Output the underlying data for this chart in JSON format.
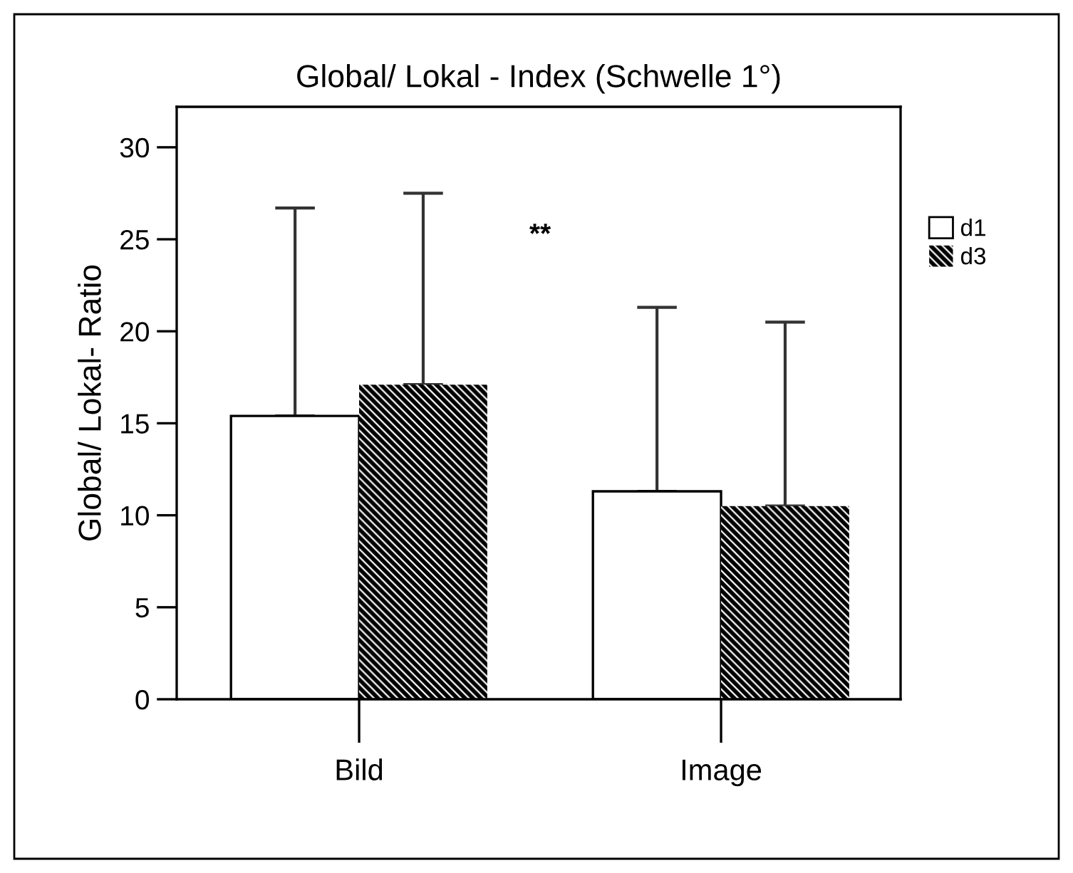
{
  "chart_data": {
    "type": "bar",
    "title": "Global/ Lokal - Index (Schwelle 1°)",
    "ylabel": "Global/ Lokal- Ratio",
    "categories": [
      "Bild",
      "Image"
    ],
    "series": [
      {
        "name": "d1",
        "color": "#ffffff",
        "values": [
          15.4,
          11.3
        ],
        "errors": [
          [
            15.4,
            26.7
          ],
          [
            11.3,
            21.3
          ]
        ]
      },
      {
        "name": "d3",
        "color": "#000000",
        "values": [
          17.1,
          10.5
        ],
        "errors": [
          [
            17.1,
            27.5
          ],
          [
            10.5,
            20.5
          ]
        ]
      }
    ],
    "annotations": [
      "**"
    ],
    "ylim": [
      0,
      32.2
    ],
    "yticks": [
      0,
      5,
      10,
      15,
      20,
      25,
      30
    ],
    "grid": false,
    "legend": "top right"
  }
}
